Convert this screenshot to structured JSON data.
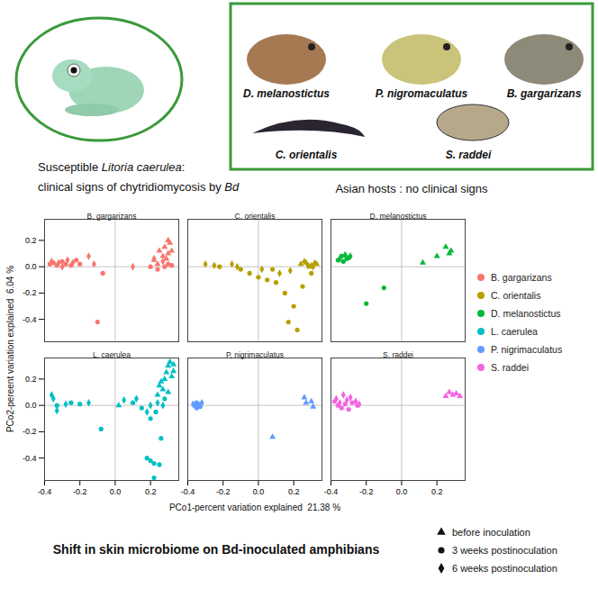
{
  "header": {
    "susceptible": {
      "lines": [
        [
          {
            "text": "Susceptible "
          },
          {
            "text": "Litoria caerulea",
            "italic": true
          },
          {
            "text": ":"
          }
        ],
        [
          {
            "text": "clinical signs of chytridiomycosis by "
          },
          {
            "text": "Bd",
            "italic": true
          }
        ]
      ]
    },
    "asian_hosts": {
      "label": "Asian hosts : no clinical signs",
      "species": [
        "D. melanostictus",
        "P. nigromaculatus",
        "B. gargarizans",
        "C. orientalis",
        "S. raddei"
      ]
    }
  },
  "chart_data": {
    "type": "scatter",
    "xlabel": "PCo1-percent variation explained  21.38 %",
    "ylabel": "PCo2-pereent variation explained  6.04 %",
    "xlim": [
      -0.4,
      0.36
    ],
    "ylim": [
      -0.57,
      0.36
    ],
    "xticks": [
      -0.4,
      -0.2,
      {
        "value": 0,
        "label": "0.0"
      },
      0.2
    ],
    "yticks": [
      -0.4,
      -0.2,
      {
        "value": 0,
        "label": "0.0"
      },
      0.2
    ],
    "x_ref": 0,
    "y_ref": 0,
    "grid": false,
    "legend": "right",
    "markers": [
      {
        "name": "before inoculation",
        "marker": "triangle"
      },
      {
        "name": "3 weeks postinoculation",
        "marker": "circle"
      },
      {
        "name": "6 weeks postinoculation",
        "marker": "diamond"
      }
    ],
    "series": [
      {
        "name": "B. gargarizans",
        "color": "#F8766D",
        "groups": [
          {
            "name": "before inoculation",
            "points": [
              [
                0.22,
                0.05
              ],
              [
                0.25,
                0.12
              ],
              [
                0.28,
                0.15
              ],
              [
                0.3,
                0.2
              ],
              [
                0.31,
                0.18
              ],
              [
                0.27,
                0.08
              ],
              [
                0.3,
                0.1
              ],
              [
                0.32,
                0.12
              ],
              [
                0.24,
                0.02
              ],
              [
                0.29,
                0.06
              ]
            ]
          },
          {
            "name": "3 weeks postinoculation",
            "points": [
              [
                -0.37,
                0.02
              ],
              [
                -0.35,
                0.03
              ],
              [
                -0.33,
                0.01
              ],
              [
                -0.3,
                0.04
              ],
              [
                -0.28,
                0.02
              ],
              [
                -0.25,
                0.01
              ],
              [
                -0.22,
                0.05
              ],
              [
                -0.2,
                0.02
              ],
              [
                -0.07,
                -0.05
              ],
              [
                -0.1,
                -0.42
              ],
              [
                0.2,
                0.0
              ],
              [
                0.24,
                -0.02
              ],
              [
                0.28,
                0.0
              ],
              [
                0.3,
                0.02
              ],
              [
                0.32,
                0.01
              ]
            ]
          },
          {
            "name": "6 weeks postinoculation",
            "points": [
              [
                -0.36,
                0.04
              ],
              [
                -0.32,
                0.03
              ],
              [
                -0.3,
                0.0
              ],
              [
                -0.27,
                0.05
              ],
              [
                -0.24,
                0.03
              ],
              [
                -0.15,
                0.08
              ],
              [
                -0.12,
                0.02
              ],
              [
                0.1,
                0.0
              ],
              [
                0.27,
                0.04
              ],
              [
                0.22,
                0.06
              ]
            ]
          }
        ]
      },
      {
        "name": "C. orientalis",
        "color": "#B79F00",
        "groups": [
          {
            "name": "before inoculation",
            "points": [
              [
                0.24,
                0.02
              ],
              [
                0.27,
                0.03
              ],
              [
                0.3,
                0.01
              ],
              [
                0.32,
                0.03
              ],
              [
                0.33,
                0.02
              ],
              [
                0.29,
                0.0
              ],
              [
                0.26,
                0.04
              ]
            ]
          },
          {
            "name": "3 weeks postinoculation",
            "points": [
              [
                -0.22,
                0.0
              ],
              [
                -0.1,
                -0.02
              ],
              [
                -0.05,
                -0.05
              ],
              [
                0.0,
                -0.08
              ],
              [
                0.05,
                -0.1
              ],
              [
                0.1,
                -0.12
              ],
              [
                0.15,
                -0.2
              ],
              [
                0.17,
                -0.42
              ],
              [
                0.22,
                -0.48
              ],
              [
                0.2,
                -0.3
              ],
              [
                0.25,
                -0.15
              ],
              [
                0.3,
                -0.05
              ],
              [
                0.08,
                -0.02
              ]
            ]
          },
          {
            "name": "6 weeks postinoculation",
            "points": [
              [
                -0.3,
                0.02
              ],
              [
                -0.25,
                0.01
              ],
              [
                -0.15,
                0.02
              ],
              [
                -0.12,
                0.0
              ],
              [
                0.02,
                -0.02
              ],
              [
                0.12,
                -0.05
              ],
              [
                0.18,
                -0.03
              ],
              [
                0.28,
                0.01
              ],
              [
                0.31,
                0.0
              ]
            ]
          }
        ]
      },
      {
        "name": "D. melanostictus",
        "color": "#00BA38",
        "groups": [
          {
            "name": "before inoculation",
            "points": [
              [
                0.12,
                0.03
              ],
              [
                0.2,
                0.08
              ],
              [
                0.25,
                0.15
              ],
              [
                0.27,
                0.1
              ],
              [
                0.28,
                0.12
              ]
            ]
          },
          {
            "name": "3 weeks postinoculation",
            "points": [
              [
                -0.36,
                0.05
              ],
              [
                -0.34,
                0.08
              ],
              [
                -0.33,
                0.04
              ],
              [
                -0.31,
                0.06
              ],
              [
                -0.3,
                0.07
              ],
              [
                -0.2,
                -0.28
              ],
              [
                -0.1,
                -0.16
              ]
            ]
          },
          {
            "name": "6 weeks postinoculation",
            "points": [
              [
                -0.35,
                0.06
              ],
              [
                -0.32,
                0.09
              ],
              [
                -0.29,
                0.08
              ]
            ]
          }
        ]
      },
      {
        "name": "L. caerulea",
        "color": "#00BFC4",
        "groups": [
          {
            "name": "before inoculation",
            "points": [
              [
                0.02,
                0.0
              ],
              [
                0.25,
                0.15
              ],
              [
                0.28,
                0.2
              ],
              [
                0.3,
                0.3
              ],
              [
                0.31,
                0.33
              ],
              [
                0.33,
                0.31
              ],
              [
                0.29,
                0.25
              ],
              [
                0.32,
                0.22
              ],
              [
                0.27,
                0.12
              ],
              [
                0.3,
                0.1
              ],
              [
                0.24,
                0.08
              ],
              [
                0.26,
                0.18
              ],
              [
                0.33,
                0.26
              ]
            ]
          },
          {
            "name": "3 weeks postinoculation",
            "points": [
              [
                -0.33,
                0.0
              ],
              [
                -0.25,
                0.02
              ],
              [
                -0.2,
                0.01
              ],
              [
                -0.08,
                -0.18
              ],
              [
                0.1,
                0.02
              ],
              [
                0.15,
                -0.02
              ],
              [
                0.2,
                -0.1
              ],
              [
                0.18,
                -0.4
              ],
              [
                0.2,
                -0.42
              ],
              [
                0.22,
                -0.44
              ],
              [
                0.25,
                -0.45
              ],
              [
                0.22,
                -0.55
              ],
              [
                0.26,
                -0.25
              ],
              [
                0.23,
                -0.05
              ],
              [
                0.28,
                0.05
              ]
            ]
          },
          {
            "name": "6 weeks postinoculation",
            "points": [
              [
                -0.36,
                0.08
              ],
              [
                -0.35,
                0.05
              ],
              [
                -0.33,
                -0.04
              ],
              [
                -0.28,
                0.01
              ],
              [
                -0.15,
                0.02
              ],
              [
                0.05,
                0.04
              ],
              [
                0.12,
                0.05
              ],
              [
                0.18,
                -0.05
              ],
              [
                0.2,
                0.0
              ],
              [
                0.24,
                0.02
              ],
              [
                0.27,
                0.0
              ]
            ]
          }
        ]
      },
      {
        "name": "P. nigrimaculatus",
        "color": "#619CFF",
        "groups": [
          {
            "name": "before inoculation",
            "points": [
              [
                0.08,
                -0.24
              ],
              [
                0.26,
                0.06
              ],
              [
                0.27,
                0.02
              ],
              [
                0.3,
                0.03
              ],
              [
                0.31,
                -0.01
              ]
            ]
          },
          {
            "name": "3 weeks postinoculation",
            "points": [
              [
                -0.36,
                0.0
              ],
              [
                -0.35,
                -0.02
              ],
              [
                -0.34,
                0.01
              ],
              [
                -0.33,
                -0.01
              ],
              [
                -0.35,
                0.02
              ]
            ]
          },
          {
            "name": "6 weeks postinoculation",
            "points": [
              [
                -0.37,
                0.01
              ],
              [
                -0.34,
                0.0
              ],
              [
                -0.32,
                0.02
              ]
            ]
          }
        ]
      },
      {
        "name": "S. raddei",
        "color": "#F564E3",
        "groups": [
          {
            "name": "before inoculation",
            "points": [
              [
                0.25,
                0.07
              ],
              [
                0.27,
                0.1
              ],
              [
                0.29,
                0.08
              ],
              [
                0.31,
                0.09
              ],
              [
                0.33,
                0.07
              ]
            ]
          },
          {
            "name": "3 weeks postinoculation",
            "points": [
              [
                -0.38,
                0.03
              ],
              [
                -0.36,
                0.0
              ],
              [
                -0.34,
                -0.02
              ],
              [
                -0.32,
                0.01
              ],
              [
                -0.3,
                -0.03
              ],
              [
                -0.28,
                0.02
              ],
              [
                -0.25,
                0.0
              ]
            ]
          },
          {
            "name": "6 weeks postinoculation",
            "points": [
              [
                -0.37,
                0.05
              ],
              [
                -0.35,
                0.02
              ],
              [
                -0.33,
                0.08
              ],
              [
                -0.31,
                0.04
              ],
              [
                -0.29,
                0.06
              ],
              [
                -0.26,
                0.03
              ],
              [
                -0.24,
                0.01
              ]
            ]
          }
        ]
      }
    ]
  },
  "caption": "Shift in skin microbiome on Bd-inoculated amphibians"
}
